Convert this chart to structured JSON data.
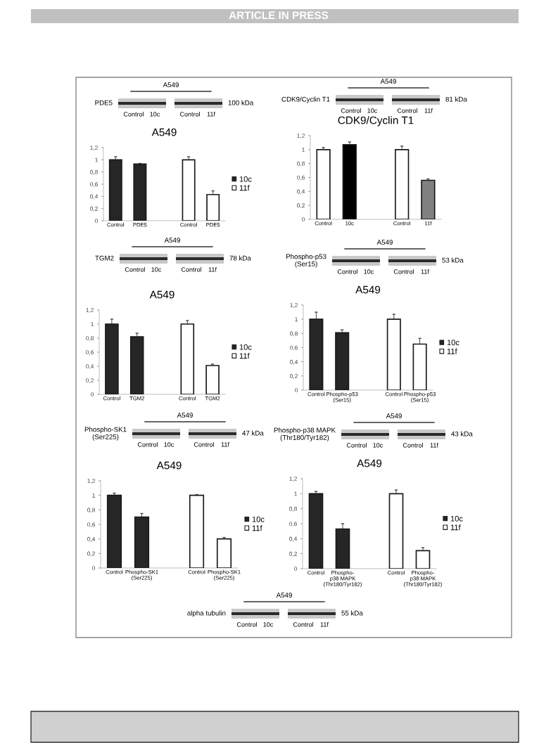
{
  "chart_data": [
    {
      "type": "other",
      "title": "ARTICLE IN PRESS"
    },
    {
      "type": "bar",
      "title": "A549",
      "categories": [
        "Control",
        "PDE5",
        null,
        "Control",
        "PDE5"
      ],
      "series": [
        {
          "name": "10c",
          "color": "#262626",
          "values": [
            1.0,
            0.93,
            null,
            null,
            null
          ],
          "errors": [
            0.05,
            0.01,
            null,
            null,
            null
          ]
        },
        {
          "name": "11f",
          "color": "#ffffff",
          "values": [
            null,
            null,
            null,
            1.0,
            0.43
          ],
          "errors": [
            null,
            null,
            null,
            0.05,
            0.06
          ]
        }
      ],
      "ylim": [
        0,
        1.2
      ],
      "yticks": [
        0,
        {
          "value": 0.2,
          "label": "0,2"
        },
        {
          "value": 0.4,
          "label": "0,4"
        },
        {
          "value": 0.6,
          "label": "0,6"
        },
        {
          "value": 0.8,
          "label": "0,8"
        },
        1,
        {
          "value": 1.2,
          "label": "1,2"
        }
      ],
      "legend": "right",
      "grid": false,
      "annotations": [
        "A549",
        "PDE5",
        "100 kDa",
        "Control",
        "10c",
        "Control",
        "11f"
      ]
    },
    {
      "type": "bar",
      "title": "CDK9/Cyclin T1",
      "categories": [
        "Control",
        "10c",
        null,
        "Control",
        "11f"
      ],
      "values": [
        1.0,
        1.07,
        null,
        1.0,
        0.56
      ],
      "colors": [
        "#ffffff",
        "#000000",
        "#ffffff",
        "#ffffff",
        "#808080"
      ],
      "errors": [
        0.03,
        0.04,
        null,
        0.05,
        0.02
      ],
      "ylim": [
        0,
        1.2
      ],
      "yticks": [
        0,
        {
          "value": 0.2,
          "label": "0,2"
        },
        {
          "value": 0.4,
          "label": "0,4"
        },
        {
          "value": 0.6,
          "label": "0,6"
        },
        {
          "value": 0.8,
          "label": "0,8"
        },
        1,
        {
          "value": 1.2,
          "label": "1,2"
        }
      ],
      "grid": false,
      "annotations": [
        "A549",
        "CDK9/Cyclin T1",
        "81 kDa",
        "Control",
        "10c",
        "Control",
        "11f"
      ]
    },
    {
      "type": "bar",
      "title": "A549",
      "categories": [
        "Control",
        "TGM2",
        null,
        "Control",
        "TGM2"
      ],
      "series": [
        {
          "name": "10c",
          "color": "#262626",
          "values": [
            1.0,
            0.82,
            null,
            null,
            null
          ],
          "errors": [
            0.07,
            0.05,
            null,
            null,
            null
          ]
        },
        {
          "name": "11f",
          "color": "#ffffff",
          "values": [
            null,
            null,
            null,
            1.0,
            0.41
          ],
          "errors": [
            null,
            null,
            null,
            0.05,
            0.02
          ]
        }
      ],
      "ylim": [
        0,
        1.2
      ],
      "yticks": [
        0,
        {
          "value": 0.2,
          "label": "0,2"
        },
        {
          "value": 0.4,
          "label": "0,4"
        },
        {
          "value": 0.6,
          "label": "0,6"
        },
        {
          "value": 0.8,
          "label": "0,8"
        },
        1,
        {
          "value": 1.2,
          "label": "1,2"
        }
      ],
      "legend": "right",
      "grid": false,
      "annotations": [
        "A549",
        "TGM2",
        "78 kDa",
        "Control",
        "10c",
        "Control",
        "11f"
      ]
    },
    {
      "type": "bar",
      "title": "A549",
      "categories": [
        "Control",
        "Phospho-p53\n(Ser15)",
        null,
        "Control",
        "Phospho-p53\n(Ser15)"
      ],
      "series": [
        {
          "name": "10c",
          "color": "#262626",
          "values": [
            1.0,
            0.81,
            null,
            null,
            null
          ],
          "errors": [
            0.1,
            0.04,
            null,
            null,
            null
          ]
        },
        {
          "name": "11f",
          "color": "#ffffff",
          "values": [
            null,
            null,
            null,
            1.0,
            0.65
          ],
          "errors": [
            null,
            null,
            null,
            0.07,
            0.08
          ]
        }
      ],
      "ylim": [
        0,
        1.2
      ],
      "yticks": [
        0,
        {
          "value": 0.2,
          "label": "0,2"
        },
        {
          "value": 0.4,
          "label": "0,4"
        },
        {
          "value": 0.6,
          "label": "0,6"
        },
        {
          "value": 0.8,
          "label": "0,8"
        },
        1,
        {
          "value": 1.2,
          "label": "1,2"
        }
      ],
      "legend": "right",
      "grid": false,
      "annotations": [
        "A549",
        "Phospho-p53\n(Ser15)",
        "53 kDa",
        "Control",
        "10c",
        "Control",
        "11f"
      ]
    },
    {
      "type": "bar",
      "title": "A549",
      "categories": [
        "Control",
        "Phospho-SK1\n(Ser225)",
        null,
        "Control",
        "Phospho-SK1\n(Ser225)"
      ],
      "series": [
        {
          "name": "10c",
          "color": "#262626",
          "values": [
            1.0,
            0.7,
            null,
            null,
            null
          ],
          "errors": [
            0.03,
            0.05,
            null,
            null,
            null
          ]
        },
        {
          "name": "11f",
          "color": "#ffffff",
          "values": [
            null,
            null,
            null,
            1.0,
            0.4
          ],
          "errors": [
            null,
            null,
            null,
            0.01,
            0.02
          ]
        }
      ],
      "ylim": [
        0,
        1.2
      ],
      "yticks": [
        0,
        {
          "value": 0.2,
          "label": "0,2"
        },
        {
          "value": 0.4,
          "label": "0,4"
        },
        {
          "value": 0.6,
          "label": "0,6"
        },
        {
          "value": 0.8,
          "label": "0,8"
        },
        1,
        {
          "value": 1.2,
          "label": "1,2"
        }
      ],
      "legend": "right",
      "grid": false,
      "annotations": [
        "A549",
        "Phospho-SK1\n(Ser225)",
        "47 kDa",
        "Control",
        "10c",
        "Control",
        "11f"
      ]
    },
    {
      "type": "bar",
      "title": "A549",
      "categories": [
        "Control",
        "Phospho-\np38 MAPK\n(Thr180/Tyr182)",
        null,
        "Control",
        "Phospho-\np38 MAPK\n(Thr180/Tyr182)"
      ],
      "series": [
        {
          "name": "10c",
          "color": "#262626",
          "values": [
            1.0,
            0.53,
            null,
            null,
            null
          ],
          "errors": [
            0.03,
            0.07,
            null,
            null,
            null
          ]
        },
        {
          "name": "11f",
          "color": "#ffffff",
          "values": [
            null,
            null,
            null,
            1.0,
            0.24
          ],
          "errors": [
            null,
            null,
            null,
            0.05,
            0.04
          ]
        }
      ],
      "ylim": [
        0,
        1.2
      ],
      "yticks": [
        0,
        {
          "value": 0.2,
          "label": "0,2"
        },
        {
          "value": 0.4,
          "label": "0,4"
        },
        {
          "value": 0.6,
          "label": "0,6"
        },
        {
          "value": 0.8,
          "label": "0,8"
        },
        1,
        {
          "value": 1.2,
          "label": "1,2"
        }
      ],
      "legend": "right",
      "grid": false,
      "annotations": [
        "A549",
        "Phospho-p38 MAPK\n(Thr180/Tyr182)",
        "43 kDa",
        "Control",
        "10c",
        "Control",
        "11f"
      ]
    },
    {
      "type": "other",
      "annotations": [
        "A549",
        "alpha tubulin",
        "55 kDa",
        "Control",
        "10c",
        "Control",
        "11f"
      ]
    }
  ]
}
